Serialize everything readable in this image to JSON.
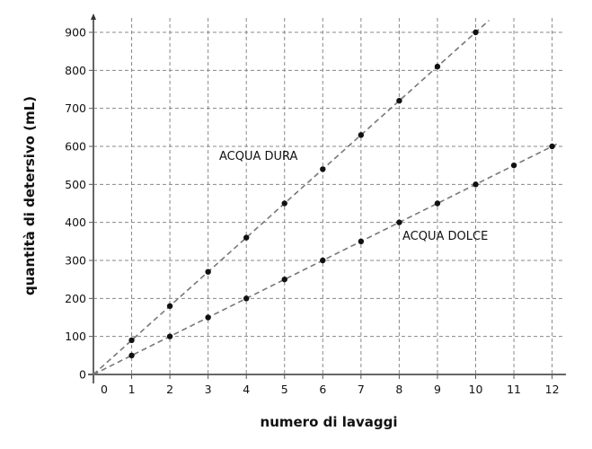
{
  "chart_data": {
    "type": "scatter",
    "title": "",
    "xlabel": "numero di lavaggi",
    "ylabel": "quantità di detersivo (mL)",
    "xlim": [
      0,
      12
    ],
    "ylim": [
      0,
      900
    ],
    "grid": true,
    "x_ticks": [
      "0",
      "1",
      "2",
      "3",
      "4",
      "5",
      "6",
      "7",
      "8",
      "9",
      "10",
      "11",
      "12"
    ],
    "y_ticks": [
      "0",
      "100",
      "200",
      "300",
      "400",
      "500",
      "600",
      "700",
      "800",
      "900"
    ],
    "series": [
      {
        "name": "ACQUA DURA",
        "x": [
          1,
          2,
          3,
          4,
          5,
          6,
          7,
          8,
          9,
          10
        ],
        "y": [
          90,
          180,
          270,
          360,
          450,
          540,
          630,
          720,
          810,
          900
        ],
        "trendline": "dashed through origin"
      },
      {
        "name": "ACQUA DOLCE",
        "x": [
          1,
          2,
          3,
          4,
          5,
          6,
          7,
          8,
          9,
          10,
          11,
          12
        ],
        "y": [
          50,
          100,
          150,
          200,
          250,
          300,
          350,
          400,
          450,
          500,
          550,
          600
        ],
        "trendline": "dashed through origin"
      }
    ],
    "colors": {
      "points": "#111111",
      "lines": "#777777",
      "grid": "#888888",
      "axes": "#666666"
    }
  }
}
